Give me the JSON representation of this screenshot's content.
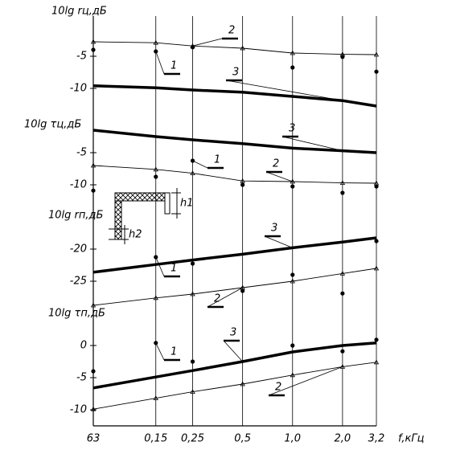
{
  "chart_data": [
    {
      "type": "line",
      "ylabel": "10lg rц,дБ",
      "x": [
        63,
        150,
        250,
        500,
        1000,
        2000,
        3200
      ],
      "ylim": [
        -13,
        0
      ],
      "yticks": [
        -5,
        -10
      ],
      "series": [
        {
          "name": "1",
          "color": "#000000",
          "values": [
            -4,
            -4.25,
            -3.6,
            null,
            -6.75,
            -5.1,
            -7.4
          ]
        },
        {
          "name": "2",
          "color": "#000000",
          "values": [
            -2.75,
            -2.9,
            -3.4,
            -3.75,
            -4.5,
            -4.7,
            -4.75
          ]
        },
        {
          "name": "3",
          "color": "#000000",
          "values": [
            -9.6,
            -9.9,
            -10.25,
            -10.6,
            -11.25,
            -11.9,
            -12.75
          ]
        }
      ]
    },
    {
      "type": "line",
      "ylabel": "10lg τц,дБ",
      "x": [
        63,
        150,
        250,
        500,
        1000,
        2000,
        3200
      ],
      "ylim": [
        -12,
        0
      ],
      "yticks": [
        -5,
        -10
      ],
      "series": [
        {
          "name": "1",
          "color": "#000000",
          "values": [
            -10.9,
            -8.75,
            -6.25,
            -10,
            -10.25,
            -11.25,
            -10.25
          ]
        },
        {
          "name": "2",
          "color": "#000000",
          "values": [
            -7,
            -7.6,
            -8.2,
            -9.4,
            -9.5,
            -9.7,
            -9.75
          ]
        },
        {
          "name": "3",
          "color": "#000000",
          "values": [
            -1.5,
            -2.5,
            -3,
            -3.6,
            -4.3,
            -4.7,
            -5
          ]
        }
      ]
    },
    {
      "type": "line",
      "ylabel": "10lg rп,дБ",
      "x": [
        63,
        150,
        250,
        500,
        1000,
        2000,
        3200
      ],
      "ylim": [
        -30,
        -15
      ],
      "yticks": [
        -20,
        -25
      ],
      "series": [
        {
          "name": "1",
          "color": "#000000",
          "values": [
            null,
            -21.25,
            -22.25,
            -26.5,
            -24,
            -26.9,
            -18.75
          ]
        },
        {
          "name": "2",
          "color": "#000000",
          "values": [
            -28.75,
            -27.6,
            -27,
            -26,
            -25,
            -23.8,
            -23
          ]
        },
        {
          "name": "3",
          "color": "#000000",
          "values": [
            -23.6,
            -22.4,
            -21.7,
            -20.8,
            -19.8,
            -18.9,
            -18.25
          ]
        }
      ]
    },
    {
      "type": "line",
      "ylabel": "10lg τп,дБ",
      "x": [
        63,
        150,
        250,
        500,
        1000,
        2000,
        3200
      ],
      "ylim": [
        -12,
        2.5
      ],
      "yticks": [
        0,
        -5,
        -10
      ],
      "xlabel": "f,кГц",
      "xlim": [
        63,
        3200
      ],
      "log_x": true,
      "grid": true,
      "xticks": [
        63,
        {
          "value": 150,
          "label": "0,15"
        },
        {
          "value": 250,
          "label": "0,25"
        },
        {
          "value": 500,
          "label": "0,5"
        },
        {
          "value": 1000,
          "label": "1,0"
        },
        {
          "value": 2000,
          "label": "2,0"
        },
        {
          "value": 3200,
          "label": "3,2"
        }
      ],
      "series": [
        {
          "name": "1",
          "color": "#000000",
          "values": [
            -4,
            0.4,
            -2.5,
            null,
            0,
            -0.9,
            0.9
          ]
        },
        {
          "name": "2",
          "color": "#000000",
          "values": [
            -9.9,
            -8.2,
            -7.2,
            -6,
            -4.6,
            -3.3,
            -2.6
          ]
        },
        {
          "name": "3",
          "color": "#000000",
          "values": [
            -6.6,
            -4.9,
            -3.9,
            -2.5,
            -1,
            0,
            0.4
          ]
        }
      ]
    }
  ],
  "inset": {
    "labels": [
      "h1",
      "h2"
    ]
  }
}
